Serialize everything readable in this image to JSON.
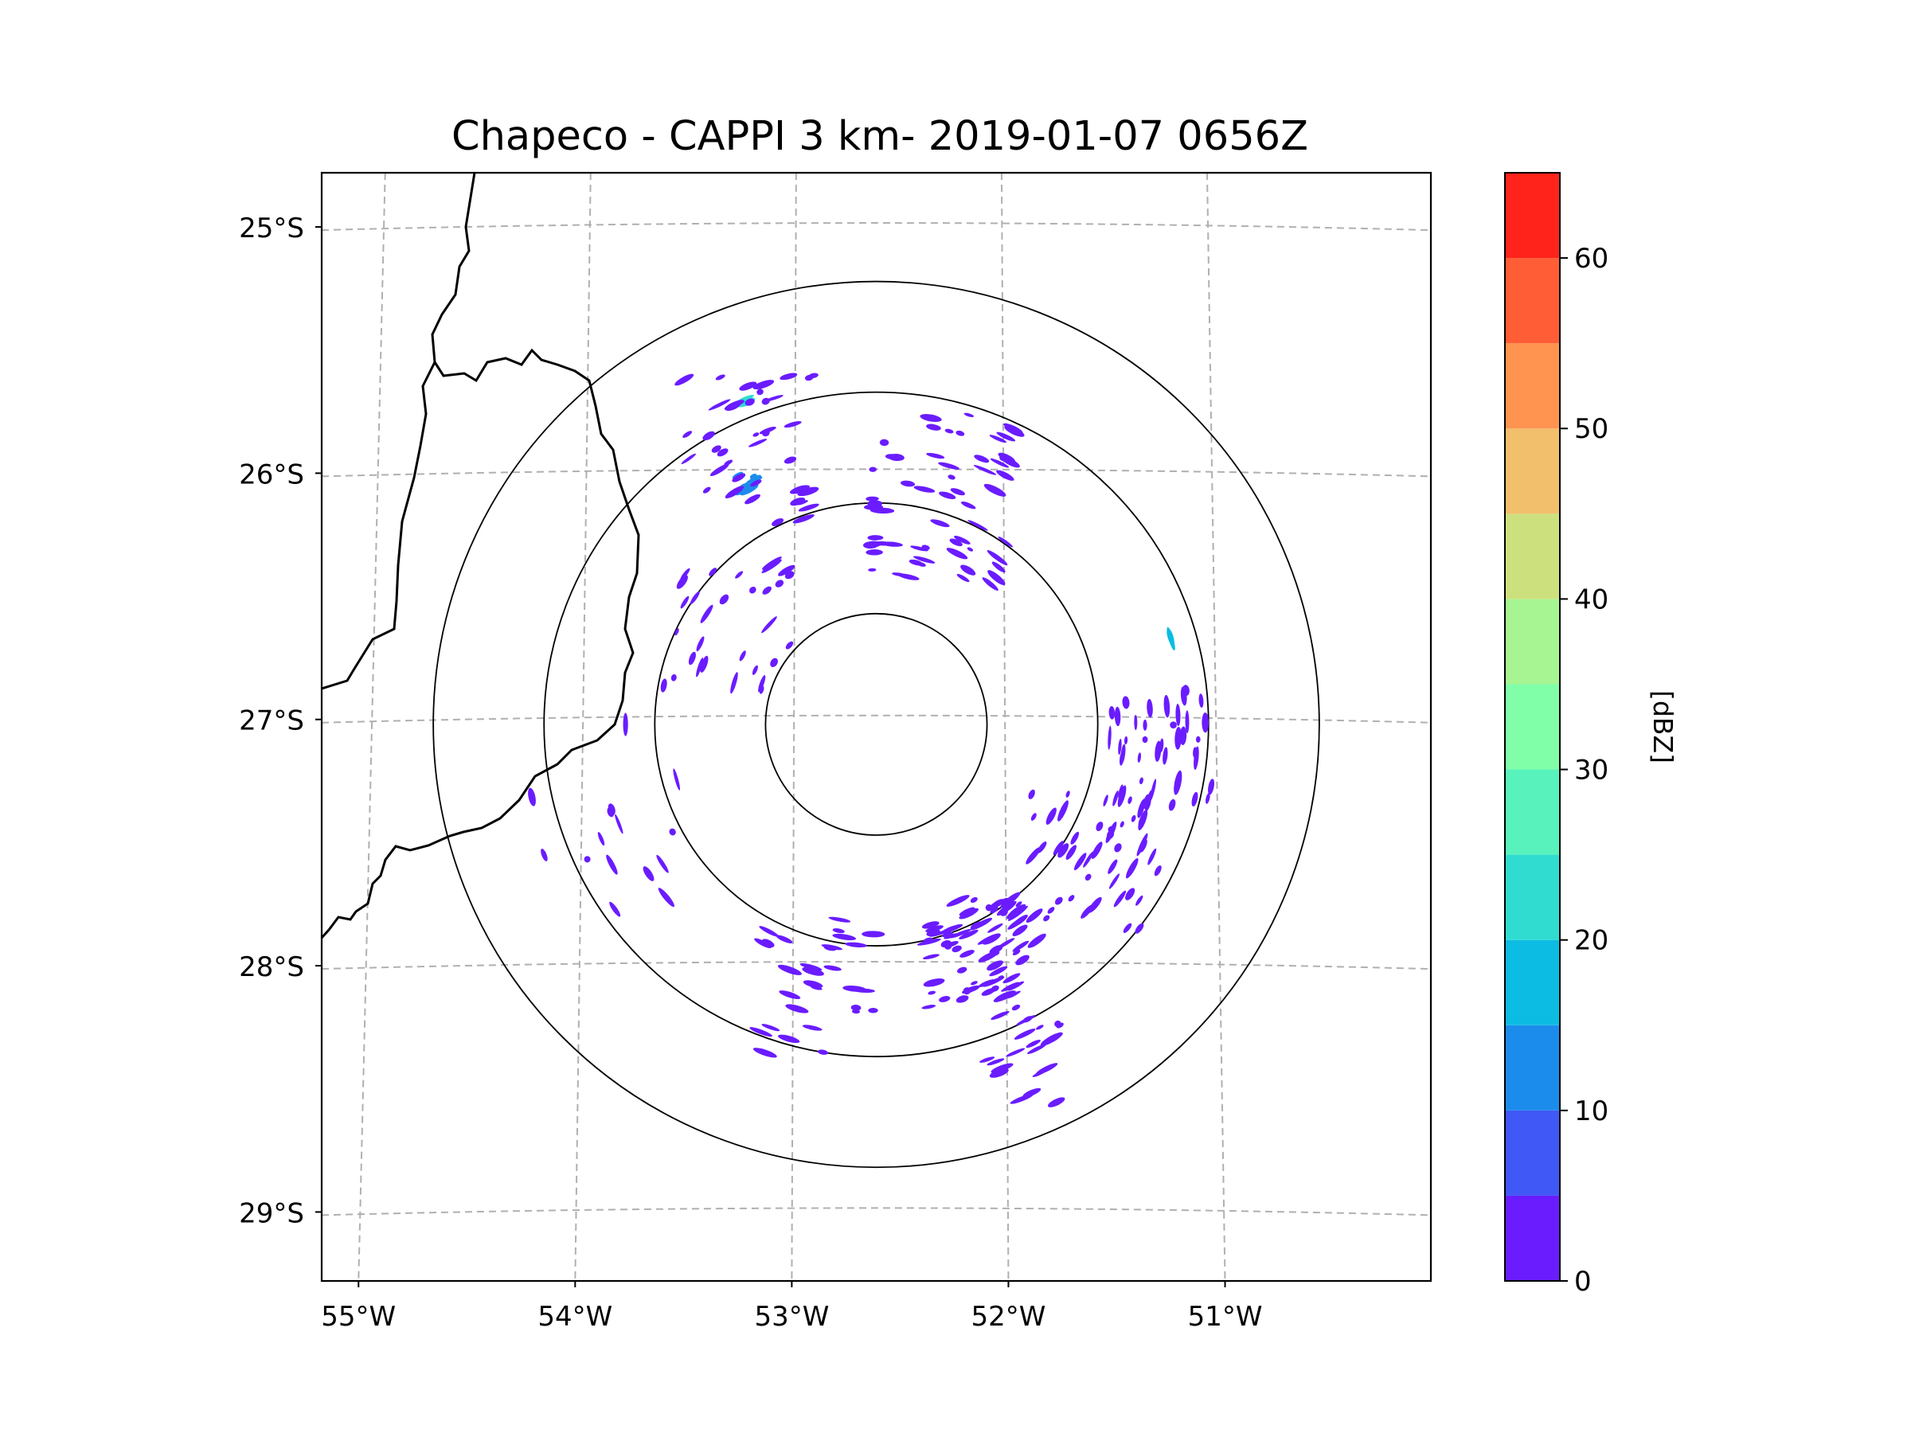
{
  "figure": {
    "title": "Chapeco - CAPPI 3 km- 2019-01-07 0656Z"
  },
  "map": {
    "lat_labels": [
      "25°S",
      "26°S",
      "27°S",
      "28°S",
      "29°S"
    ],
    "lon_labels": [
      "55°W",
      "54°W",
      "53°W",
      "52°W",
      "51°W"
    ],
    "extent": {
      "lon_min": -55.17,
      "lon_max": -50.05,
      "lat_min": -29.28,
      "lat_max": -24.78
    },
    "radar_center": {
      "lon": -52.61,
      "lat": -27.02
    },
    "range_rings_km": [
      50,
      100,
      150,
      200
    ],
    "gridline_color": "#b0b0b0",
    "border_color": "#000000"
  },
  "colorbar": {
    "label": "[dBZ]",
    "tick_labels": [
      "0",
      "10",
      "20",
      "30",
      "40",
      "50",
      "60"
    ],
    "min": 0,
    "max": 65,
    "levels": [
      0,
      5,
      10,
      15,
      20,
      25,
      30,
      35,
      40,
      45,
      50,
      55,
      60,
      65
    ],
    "colors": [
      "#6a1cff",
      "#4058f6",
      "#1c8cec",
      "#0cbce2",
      "#30dcd0",
      "#58f2bc",
      "#80ffa8",
      "#a6f592",
      "#cde07e",
      "#f2bf6c",
      "#ff9350",
      "#ff5d36",
      "#ff231b"
    ]
  },
  "chart_data": {
    "type": "heatmap",
    "title": "Chapeco - CAPPI 3 km- 2019-01-07 0656Z",
    "variable": "reflectivity",
    "units": "dBZ",
    "xlabel": "",
    "ylabel": "",
    "x_ticks": [
      "55°W",
      "54°W",
      "53°W",
      "52°W",
      "51°W"
    ],
    "y_ticks": [
      "25°S",
      "26°S",
      "27°S",
      "28°S",
      "29°S"
    ],
    "value_range": [
      0,
      65
    ],
    "note": "Scattered weak echoes mostly 0-5 dBZ; a few 5-20 dBZ cells",
    "echo_clusters": [
      {
        "lon": -53.2,
        "lat": -26.05,
        "dbz": 12,
        "n": 10,
        "spread": 0.05
      },
      {
        "lon": -53.2,
        "lat": -25.7,
        "dbz": 20,
        "n": 3,
        "spread": 0.04
      },
      {
        "lon": -51.25,
        "lat": -26.68,
        "dbz": 18,
        "n": 2,
        "spread": 0.02
      },
      {
        "lon": -52.15,
        "lat": -27.95,
        "dbz": 3,
        "n": 70,
        "spread": 0.22
      },
      {
        "lon": -51.6,
        "lat": -27.6,
        "dbz": 3,
        "n": 50,
        "spread": 0.3
      },
      {
        "lon": -51.3,
        "lat": -27.1,
        "dbz": 3,
        "n": 40,
        "spread": 0.25
      },
      {
        "lon": -52.3,
        "lat": -26.1,
        "dbz": 3,
        "n": 60,
        "spread": 0.35
      },
      {
        "lon": -53.2,
        "lat": -25.9,
        "dbz": 3,
        "n": 40,
        "spread": 0.3
      },
      {
        "lon": -53.3,
        "lat": -26.6,
        "dbz": 3,
        "n": 30,
        "spread": 0.3
      },
      {
        "lon": -52.9,
        "lat": -28.1,
        "dbz": 3,
        "n": 30,
        "spread": 0.3
      },
      {
        "lon": -51.9,
        "lat": -28.4,
        "dbz": 3,
        "n": 20,
        "spread": 0.2
      },
      {
        "lon": -53.8,
        "lat": -27.4,
        "dbz": 3,
        "n": 15,
        "spread": 0.4
      }
    ]
  }
}
